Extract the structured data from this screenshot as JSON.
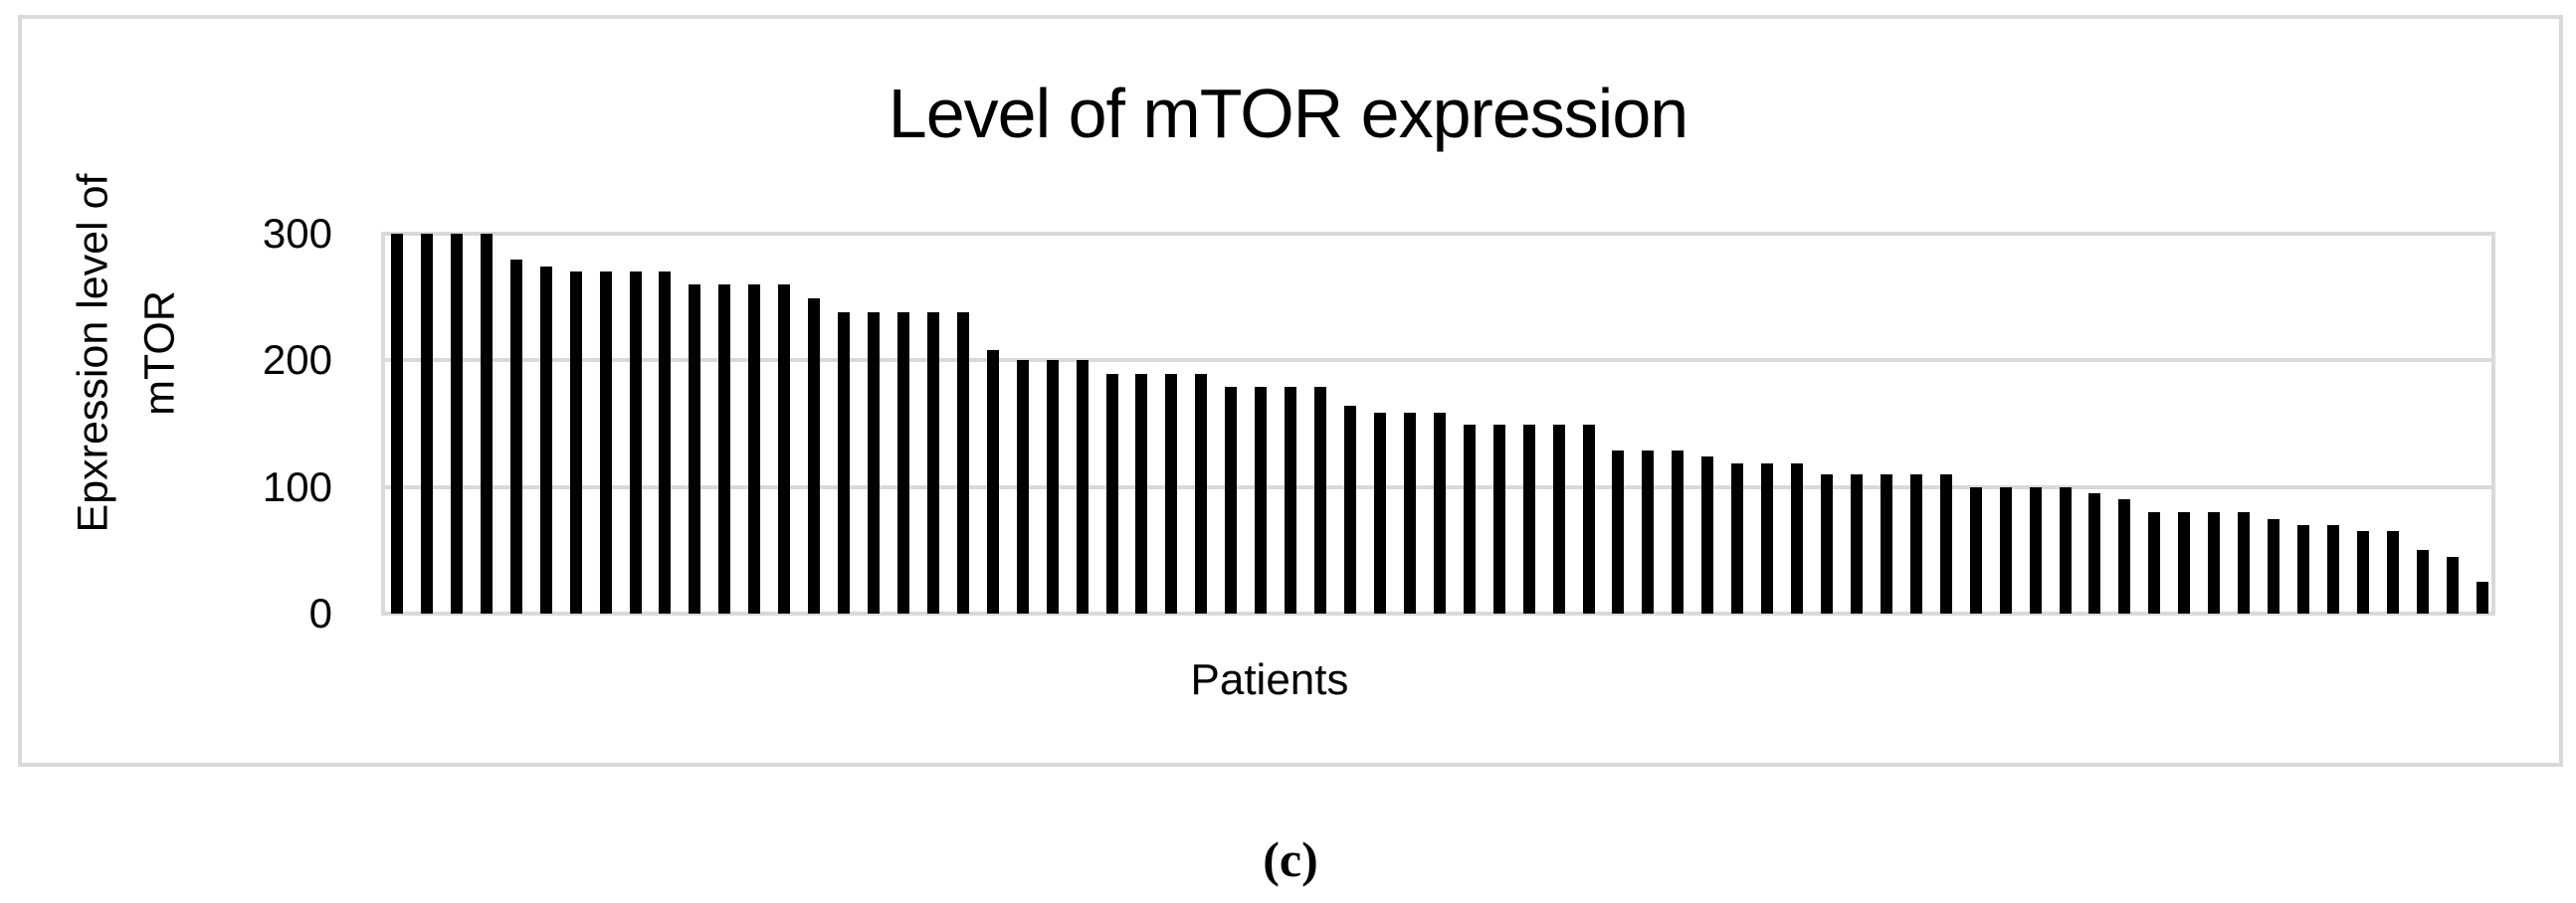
{
  "figure": {
    "title": "Level of mTOR expression",
    "y_axis_label_line1": "Epxression level of",
    "y_axis_label_line2": "mTOR",
    "x_axis_label": "Patients",
    "caption": "(c)"
  },
  "colors": {
    "bar": "#000000",
    "grid": "#d9d9d9",
    "text": "#000000",
    "background": "#ffffff"
  },
  "chart_data": {
    "type": "bar",
    "title": "Level of mTOR expression",
    "xlabel": "Patients",
    "ylabel": "Epxression level of mTOR",
    "ylim": [
      0,
      300
    ],
    "yticks": [
      0,
      100,
      200,
      300
    ],
    "grid": true,
    "legend": false,
    "x_tick_labels": "none (individual unlabeled patients)",
    "n_bars": 71,
    "values": [
      300,
      300,
      300,
      300,
      280,
      274,
      270,
      270,
      270,
      270,
      260,
      260,
      260,
      260,
      249,
      238,
      238,
      238,
      238,
      238,
      208,
      200,
      200,
      200,
      189,
      189,
      189,
      189,
      179,
      179,
      179,
      179,
      164,
      159,
      159,
      159,
      149,
      149,
      149,
      149,
      149,
      129,
      129,
      129,
      124,
      119,
      119,
      119,
      110,
      110,
      110,
      110,
      110,
      100,
      100,
      100,
      100,
      95,
      90,
      80,
      80,
      80,
      80,
      75,
      70,
      70,
      65,
      65,
      50,
      45,
      25
    ]
  }
}
